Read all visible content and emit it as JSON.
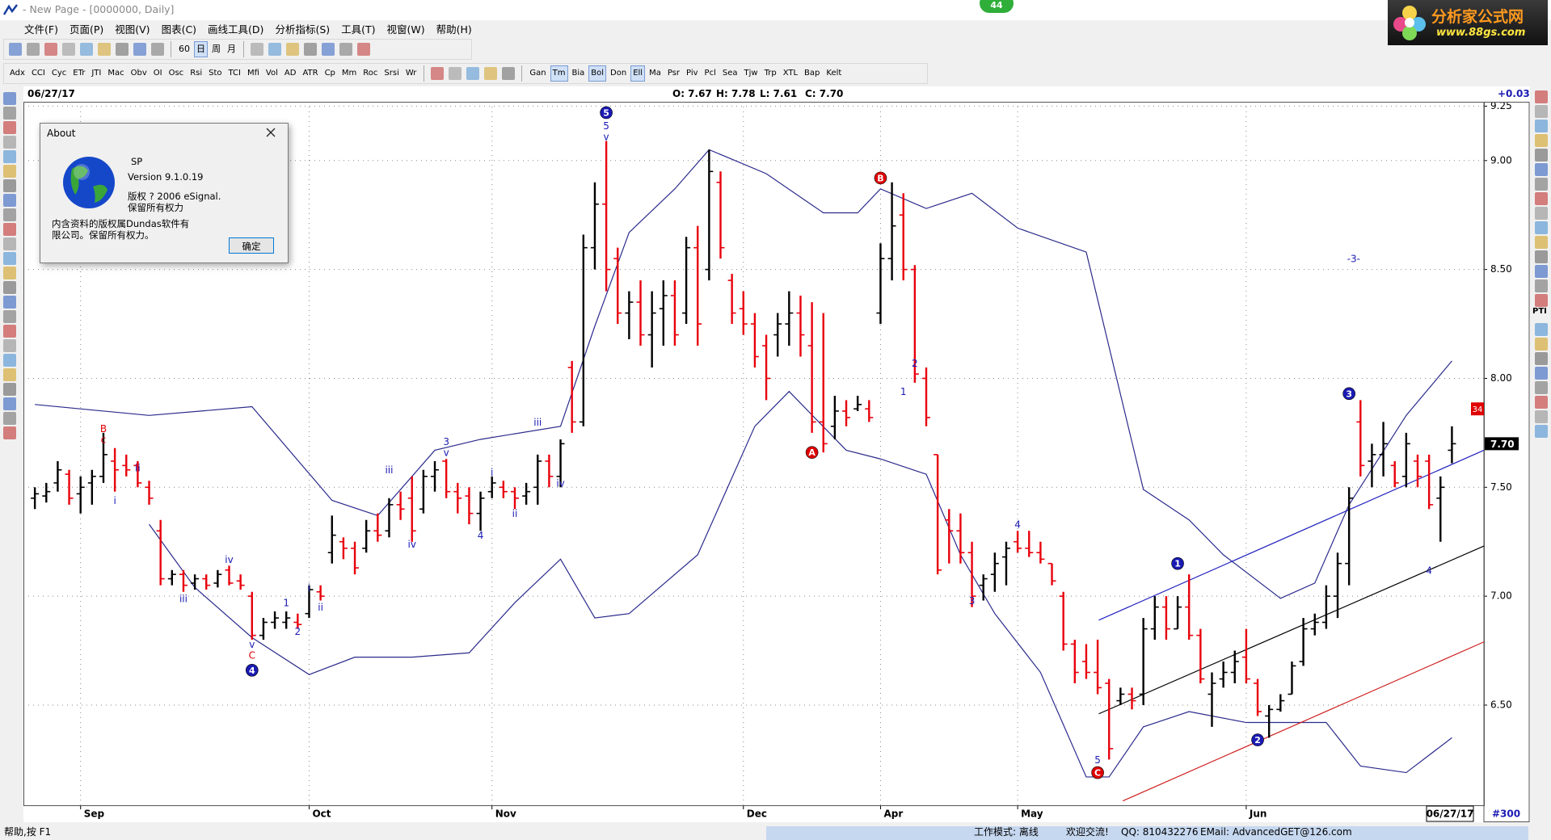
{
  "window": {
    "title": "- New Page - [0000000, Daily]",
    "badge": "44"
  },
  "logo": {
    "name": "分析家公式网",
    "url": "www.88gs.com"
  },
  "menu": [
    "文件(F)",
    "页面(P)",
    "视图(V)",
    "图表(C)",
    "画线工具(D)",
    "分析指标(S)",
    "工具(T)",
    "视窗(W)",
    "帮助(H)"
  ],
  "toolbar_1": [
    "60",
    "日",
    "周",
    "月"
  ],
  "toolbar_2": [
    [
      "Adx",
      "CCI",
      "Cyc",
      "ETr",
      "JTI",
      "Mac",
      "Obv",
      "OI",
      "Osc",
      "Rsi",
      "Sto",
      "TCI",
      "Mfi",
      "Vol",
      "AD",
      "ATR",
      "Cp",
      "Mm",
      "Roc",
      "Srsi",
      "Wr"
    ],
    [
      "Gan",
      "Tm",
      "Bia",
      "Bol",
      "Don",
      "Ell",
      "Ma",
      "Psr",
      "Piv",
      "Pcl",
      "Sea",
      "Tjw",
      "Trp",
      "XTL",
      "Bap",
      "Kelt"
    ]
  ],
  "info_bar": {
    "date": "06/27/17",
    "ohlc": [
      "O: 7.67",
      "H: 7.78",
      "L: 7.61",
      "C: 7.70"
    ],
    "change": "+0.03"
  },
  "right_toolbar": {
    "label": "PTI"
  },
  "about_dialog": {
    "title": "About",
    "product": "SP",
    "version": "Version 9.1.0.19",
    "copyright": [
      "版权 ? 2006 eSignal.",
      "保留所有权力"
    ],
    "notice": [
      "内含资料的版权属Dundas软件有",
      "限公司。保留所有权力。"
    ],
    "button": "确定"
  },
  "status_bar": {
    "help": "帮助,按 F1",
    "mode": "工作模式: 离线",
    "welcome": "欢迎交流!",
    "qq": "QQ: 810432276",
    "email": "EMail: AdvancedGET@126.com"
  },
  "chart_data": {
    "type": "ohlc",
    "up_color": "#000000",
    "down_color": "#e8000b",
    "grid": true,
    "xlim": [
      -1,
      126.8
    ],
    "ylim": [
      6.04,
      9.27
    ],
    "xticks": [
      {
        "value": 4,
        "label": "Sep"
      },
      {
        "value": 24,
        "label": "Oct"
      },
      {
        "value": 40,
        "label": "Nov"
      },
      {
        "value": 62,
        "label": "Dec"
      },
      {
        "value": 74,
        "label": "Apr"
      },
      {
        "value": 86,
        "label": "May"
      },
      {
        "value": 106,
        "label": "Jun"
      }
    ],
    "yticks": [
      {
        "value": 6.5,
        "label": "6.50"
      },
      {
        "value": 7,
        "label": "7.00"
      },
      {
        "value": 7.5,
        "label": "7.50"
      },
      {
        "value": 8,
        "label": "8.00"
      },
      {
        "value": 8.5,
        "label": "8.50"
      },
      {
        "value": 9,
        "label": "9.00"
      },
      {
        "value": 9.25,
        "label": "9.25"
      }
    ],
    "open": [
      7.45,
      7.46,
      7.52,
      7.56,
      7.47,
      7.52,
      7.55,
      7.62,
      7.6,
      7.6,
      7.5,
      7.3,
      7.08,
      7.1,
      7.06,
      7.08,
      7.06,
      7.12,
      7.07,
      7.0,
      6.82,
      6.88,
      6.88,
      6.88,
      6.92,
      7.02,
      7.2,
      7.25,
      7.22,
      7.22,
      7.3,
      7.3,
      7.42,
      7.45,
      7.4,
      7.55,
      7.62,
      7.48,
      7.46,
      7.38,
      7.48,
      7.5,
      7.48,
      7.46,
      7.5,
      7.62,
      7.55,
      8.05,
      7.8,
      8.6,
      8.8,
      8.55,
      8.3,
      8.35,
      8.2,
      8.32,
      8.38,
      8.3,
      8.6,
      8.5,
      8.9,
      8.45,
      8.32,
      8.25,
      8.15,
      8.2,
      8.25,
      8.3,
      8.15,
      7.8,
      7.78,
      7.85,
      7.86,
      7.86,
      8.3,
      8.55,
      8.75,
      8.5,
      8.0,
      7.65,
      7.35,
      7.3,
      7.2,
      7.05,
      7.1,
      7.18,
      7.25,
      7.22,
      7.2,
      7.15,
      7.0,
      6.78,
      6.7,
      6.65,
      6.6,
      6.52,
      6.55,
      6.55,
      6.85,
      6.95,
      6.85,
      6.95,
      6.82,
      6.55,
      6.62,
      6.65,
      6.72,
      6.6,
      6.45,
      6.48,
      6.55,
      6.7,
      6.85,
      6.88,
      7.0,
      7.15,
      7.8,
      7.62,
      7.65,
      7.6,
      7.55,
      7.62,
      7.62,
      7.45,
      7.67
    ],
    "high": [
      7.5,
      7.52,
      7.62,
      7.58,
      7.55,
      7.58,
      7.75,
      7.68,
      7.65,
      7.62,
      7.53,
      7.35,
      7.12,
      7.12,
      7.1,
      7.1,
      7.12,
      7.14,
      7.1,
      7.02,
      6.9,
      6.93,
      6.93,
      6.92,
      7.05,
      7.05,
      7.37,
      7.27,
      7.25,
      7.35,
      7.38,
      7.45,
      7.48,
      7.55,
      7.58,
      7.62,
      7.63,
      7.52,
      7.5,
      7.48,
      7.55,
      7.53,
      7.5,
      7.52,
      7.65,
      7.65,
      7.72,
      8.08,
      8.66,
      8.9,
      9.09,
      8.6,
      8.4,
      8.45,
      8.4,
      8.45,
      8.45,
      8.65,
      8.7,
      9.05,
      8.95,
      8.48,
      8.4,
      8.3,
      8.2,
      8.3,
      8.4,
      8.38,
      8.35,
      8.3,
      7.92,
      7.9,
      7.92,
      7.9,
      8.62,
      8.9,
      8.85,
      8.52,
      8.05,
      7.65,
      7.4,
      7.38,
      7.25,
      7.1,
      7.2,
      7.25,
      7.3,
      7.3,
      7.25,
      7.15,
      7.02,
      6.8,
      6.78,
      6.8,
      6.62,
      6.58,
      6.58,
      6.9,
      7.0,
      7.0,
      7.0,
      7.1,
      6.85,
      6.65,
      6.7,
      6.75,
      6.85,
      6.62,
      6.5,
      6.55,
      6.7,
      6.9,
      6.92,
      7.05,
      7.2,
      7.5,
      7.9,
      7.7,
      7.8,
      7.62,
      7.75,
      7.65,
      7.65,
      7.55,
      7.78
    ],
    "low": [
      7.4,
      7.43,
      7.48,
      7.42,
      7.38,
      7.42,
      7.52,
      7.48,
      7.55,
      7.5,
      7.42,
      7.05,
      7.05,
      7.02,
      7.03,
      7.03,
      7.04,
      7.05,
      7.03,
      6.8,
      6.8,
      6.85,
      6.85,
      6.85,
      6.9,
      6.98,
      7.15,
      7.17,
      7.1,
      7.2,
      7.25,
      7.27,
      7.35,
      7.25,
      7.38,
      7.48,
      7.45,
      7.38,
      7.33,
      7.3,
      7.45,
      7.45,
      7.4,
      7.42,
      7.42,
      7.5,
      7.5,
      7.75,
      7.78,
      8.5,
      8.4,
      8.25,
      8.18,
      8.15,
      8.05,
      8.15,
      8.15,
      8.25,
      8.15,
      8.45,
      8.55,
      8.25,
      8.2,
      8.05,
      7.9,
      8.1,
      8.15,
      8.1,
      7.75,
      7.66,
      7.72,
      7.78,
      7.85,
      7.8,
      8.25,
      8.45,
      8.45,
      7.98,
      7.78,
      7.1,
      7.15,
      7.15,
      6.95,
      6.98,
      7.02,
      7.05,
      7.2,
      7.18,
      7.15,
      7.05,
      6.75,
      6.6,
      6.62,
      6.55,
      6.25,
      6.5,
      6.48,
      6.5,
      6.8,
      6.8,
      6.85,
      6.8,
      6.6,
      6.4,
      6.58,
      6.6,
      6.6,
      6.45,
      6.35,
      6.47,
      6.55,
      6.68,
      6.82,
      6.85,
      6.9,
      7.05,
      7.55,
      7.5,
      7.55,
      7.5,
      7.5,
      7.5,
      7.4,
      7.25,
      7.61
    ],
    "close": [
      7.47,
      7.48,
      7.58,
      7.45,
      7.5,
      7.55,
      7.65,
      7.58,
      7.58,
      7.52,
      7.45,
      7.08,
      7.1,
      7.05,
      7.08,
      7.05,
      7.1,
      7.06,
      7.05,
      6.82,
      6.88,
      6.9,
      6.9,
      6.87,
      7.03,
      7.0,
      7.28,
      7.22,
      7.13,
      7.3,
      7.28,
      7.42,
      7.4,
      7.3,
      7.55,
      7.58,
      7.48,
      7.45,
      7.38,
      7.45,
      7.52,
      7.48,
      7.45,
      7.48,
      7.62,
      7.55,
      7.7,
      7.8,
      8.6,
      8.8,
      8.5,
      8.3,
      8.35,
      8.2,
      8.3,
      8.38,
      8.2,
      8.6,
      8.25,
      8.95,
      8.6,
      8.3,
      8.25,
      8.1,
      8.0,
      8.25,
      8.3,
      8.2,
      7.8,
      7.7,
      7.85,
      7.82,
      7.88,
      7.82,
      8.55,
      8.7,
      8.5,
      8.02,
      7.82,
      7.12,
      7.3,
      7.2,
      7.0,
      7.08,
      7.15,
      7.22,
      7.22,
      7.2,
      7.17,
      7.07,
      6.78,
      6.65,
      6.65,
      6.58,
      6.3,
      6.55,
      6.52,
      6.85,
      6.95,
      6.85,
      6.95,
      6.82,
      6.62,
      6.6,
      6.65,
      6.7,
      6.62,
      6.47,
      6.48,
      6.52,
      6.68,
      6.85,
      6.88,
      7.0,
      7.15,
      7.45,
      7.6,
      7.65,
      7.7,
      7.52,
      7.7,
      7.55,
      7.42,
      7.5,
      7.7
    ],
    "bands": [
      {
        "color": "#2b2b8c",
        "x": [
          0,
          10,
          19,
          26,
          30,
          35,
          39,
          46,
          49,
          52,
          56,
          59,
          64,
          69,
          72,
          74,
          78,
          82,
          86,
          92,
          97,
          101,
          104,
          109,
          112,
          115,
          120,
          124
        ],
        "values": [
          7.88,
          7.83,
          7.87,
          7.44,
          7.37,
          7.67,
          7.72,
          7.78,
          8.24,
          8.67,
          8.87,
          9.05,
          8.94,
          8.76,
          8.76,
          8.87,
          8.78,
          8.85,
          8.69,
          8.58,
          7.49,
          7.35,
          7.19,
          6.99,
          7.06,
          7.42,
          7.83,
          8.08
        ]
      },
      {
        "color": "#2b2b8c",
        "x": [
          10,
          14,
          19,
          24,
          28,
          33,
          38,
          42,
          46,
          49,
          52,
          58,
          63,
          66,
          71,
          74,
          78,
          81,
          84,
          88,
          92,
          94,
          97,
          101,
          106,
          110,
          113,
          116,
          120,
          124
        ],
        "values": [
          7.33,
          7.04,
          6.81,
          6.64,
          6.72,
          6.72,
          6.74,
          6.97,
          7.17,
          6.9,
          6.92,
          7.19,
          7.78,
          7.94,
          7.67,
          7.63,
          7.56,
          7.19,
          6.92,
          6.65,
          6.17,
          6.17,
          6.4,
          6.47,
          6.42,
          6.42,
          6.42,
          6.22,
          6.19,
          6.35
        ]
      }
    ],
    "trend_lines": [
      {
        "color": "#2020c0",
        "x": [
          93.1,
          126.8
        ],
        "values": [
          6.89,
          7.67
        ]
      },
      {
        "color": "#000000",
        "x": [
          93.1,
          126.8
        ],
        "values": [
          6.46,
          7.23
        ]
      },
      {
        "color": "#d02020",
        "x": [
          95.2,
          126.8
        ],
        "values": [
          6.06,
          6.79
        ]
      }
    ],
    "annotations": [
      {
        "text": "B",
        "x": 6,
        "y": 7.77,
        "color": "#e00000",
        "circled": false
      },
      {
        "text": "c",
        "x": 6,
        "y": 7.72,
        "color": "#e00000",
        "circled": false
      },
      {
        "text": "i",
        "x": 7,
        "y": 7.44,
        "color": "#1a1ab4",
        "circled": false
      },
      {
        "text": "ii",
        "x": 9,
        "y": 7.59,
        "color": "#1a1ab4",
        "circled": false
      },
      {
        "text": "iii",
        "x": 13,
        "y": 6.99,
        "color": "#1a1ab4",
        "circled": false
      },
      {
        "text": "iv",
        "x": 17,
        "y": 7.17,
        "color": "#1a1ab4",
        "circled": false
      },
      {
        "text": "v",
        "x": 19,
        "y": 6.78,
        "color": "#1a1ab4",
        "circled": false
      },
      {
        "text": "C",
        "x": 19,
        "y": 6.73,
        "color": "#e00000",
        "circled": false
      },
      {
        "text": "4",
        "x": 19,
        "y": 6.66,
        "color": "#1a1ab4",
        "circled": true
      },
      {
        "text": "1",
        "x": 22,
        "y": 6.97,
        "color": "#1a1ab4",
        "circled": false
      },
      {
        "text": "2",
        "x": 23,
        "y": 6.84,
        "color": "#1a1ab4",
        "circled": false
      },
      {
        "text": "i",
        "x": 24,
        "y": 7.04,
        "color": "#1a1ab4",
        "circled": false
      },
      {
        "text": "ii",
        "x": 25,
        "y": 6.95,
        "color": "#1a1ab4",
        "circled": false
      },
      {
        "text": "iii",
        "x": 31,
        "y": 7.58,
        "color": "#1a1ab4",
        "circled": false
      },
      {
        "text": "iv",
        "x": 33,
        "y": 7.24,
        "color": "#1a1ab4",
        "circled": false
      },
      {
        "text": "3",
        "x": 36,
        "y": 7.71,
        "color": "#1a1ab4",
        "circled": false
      },
      {
        "text": "v",
        "x": 36,
        "y": 7.66,
        "color": "#1a1ab4",
        "circled": false
      },
      {
        "text": "4",
        "x": 39,
        "y": 7.28,
        "color": "#1a1ab4",
        "circled": false
      },
      {
        "text": "i",
        "x": 40,
        "y": 7.57,
        "color": "#1a1ab4",
        "circled": false
      },
      {
        "text": "ii",
        "x": 42,
        "y": 7.38,
        "color": "#1a1ab4",
        "circled": false
      },
      {
        "text": "iii",
        "x": 44,
        "y": 7.8,
        "color": "#1a1ab4",
        "circled": false
      },
      {
        "text": "iv",
        "x": 46,
        "y": 7.52,
        "color": "#1a1ab4",
        "circled": false
      },
      {
        "text": "5",
        "x": 50,
        "y": 9.22,
        "color": "#1a1ab4",
        "circled": true
      },
      {
        "text": "5",
        "x": 50,
        "y": 9.16,
        "color": "#1a1ab4",
        "circled": false
      },
      {
        "text": "v",
        "x": 50,
        "y": 9.11,
        "color": "#1a1ab4",
        "circled": false
      },
      {
        "text": "A",
        "x": 68,
        "y": 7.66,
        "color": "#e00000",
        "circled": true
      },
      {
        "text": "B",
        "x": 74,
        "y": 8.92,
        "color": "#e00000",
        "circled": true
      },
      {
        "text": "1",
        "x": 76,
        "y": 7.94,
        "color": "#1a1ab4",
        "circled": false
      },
      {
        "text": "2",
        "x": 77,
        "y": 8.07,
        "color": "#1a1ab4",
        "circled": false
      },
      {
        "text": "3",
        "x": 82,
        "y": 6.98,
        "color": "#1a1ab4",
        "circled": false
      },
      {
        "text": "4",
        "x": 86,
        "y": 7.33,
        "color": "#1a1ab4",
        "circled": false
      },
      {
        "text": "5",
        "x": 93,
        "y": 6.25,
        "color": "#1a1ab4",
        "circled": false
      },
      {
        "text": "C",
        "x": 93,
        "y": 6.19,
        "color": "#e00000",
        "circled": true
      },
      {
        "text": "1",
        "x": 100,
        "y": 7.15,
        "color": "#1a1ab4",
        "circled": true
      },
      {
        "text": "2",
        "x": 107,
        "y": 6.34,
        "color": "#1a1ab4",
        "circled": true
      },
      {
        "text": "3",
        "x": 115,
        "y": 7.93,
        "color": "#1a1ab4",
        "circled": true
      },
      {
        "text": "4",
        "x": 122,
        "y": 7.12,
        "color": "#1a1ab4",
        "circled": false
      },
      {
        "text": "-3-",
        "x": 115.4,
        "y": 8.55,
        "color": "#1a1ab4",
        "circled": false
      }
    ],
    "last_price": {
      "value": 7.7,
      "label": "7.70"
    },
    "marker": {
      "value": 7.86,
      "label": "34"
    },
    "footer": {
      "date": "06/27/17",
      "bars": "#300"
    }
  }
}
